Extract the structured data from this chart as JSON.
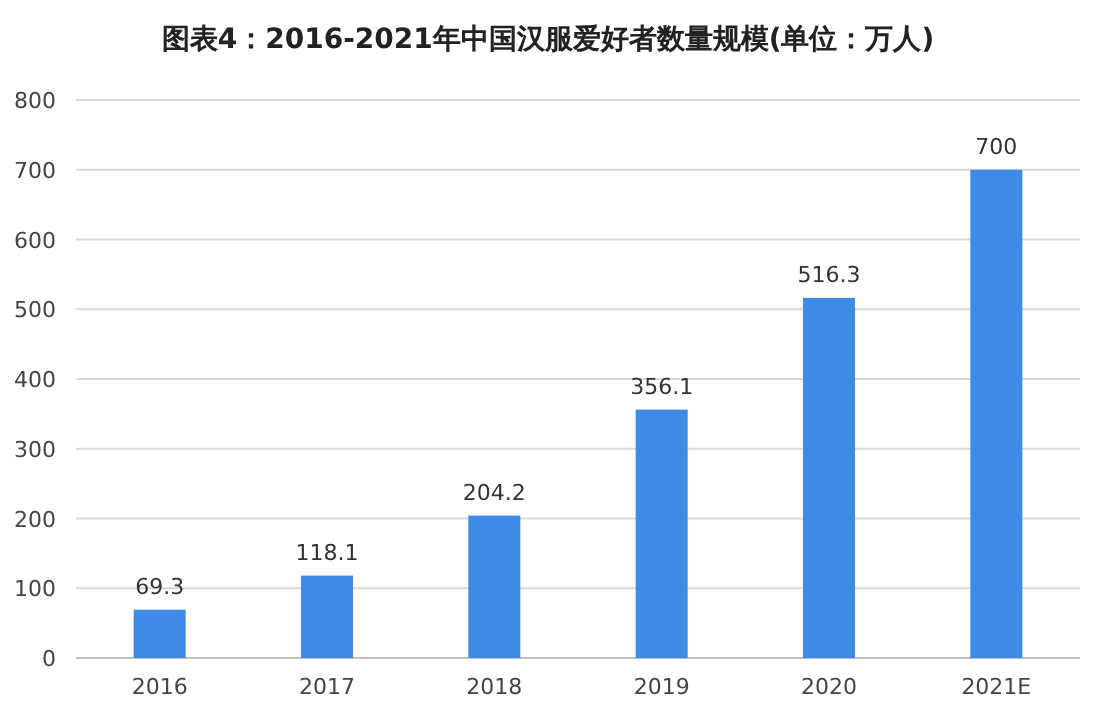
{
  "chart_data": {
    "type": "bar",
    "title": "图表4：2016-2021年中国汉服爱好者数量规模(单位：万人)",
    "categories": [
      "2016",
      "2017",
      "2018",
      "2019",
      "2020",
      "2021E"
    ],
    "values": [
      69.3,
      118.1,
      204.2,
      356.1,
      516.3,
      700
    ],
    "color": "#3d8be6",
    "ylim": [
      0,
      800
    ],
    "yticks": [
      0,
      100,
      200,
      300,
      400,
      500,
      600,
      700,
      800
    ],
    "grid": "y",
    "data_labels": true
  }
}
